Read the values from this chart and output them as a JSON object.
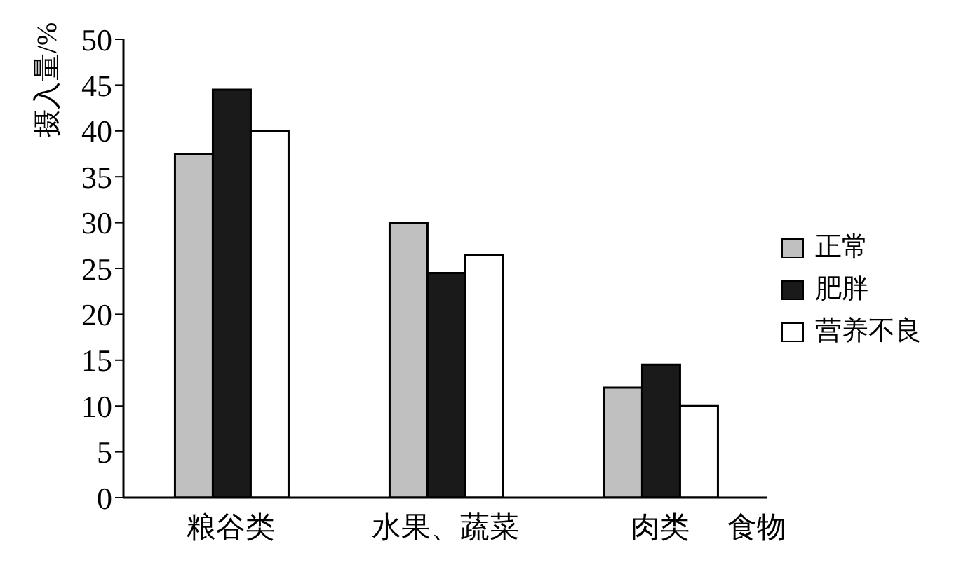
{
  "chart_data": {
    "type": "bar",
    "xlabel": "食物",
    "ylabel": "摄入量/%",
    "categories": [
      "粮谷类",
      "水果、蔬菜",
      "肉类"
    ],
    "series": [
      {
        "name": "正常",
        "color": "#c0c0c0",
        "values": [
          37.5,
          30,
          12
        ]
      },
      {
        "name": "肥胖",
        "color": "#1a1a1a",
        "values": [
          44.5,
          24.5,
          14.5
        ]
      },
      {
        "name": "营养不良",
        "color": "#ffffff",
        "values": [
          40,
          26.5,
          10
        ]
      }
    ],
    "ylim": [
      0,
      50
    ],
    "yticks": [
      0,
      5,
      10,
      15,
      20,
      25,
      30,
      35,
      40,
      45,
      50
    ],
    "grid": false,
    "legend": "right"
  }
}
